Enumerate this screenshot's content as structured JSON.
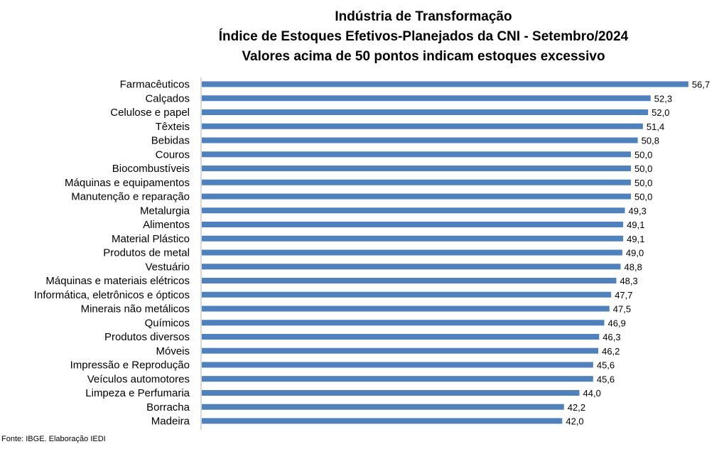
{
  "title_lines": [
    "Indústria de Transformação",
    "Índice de Estoques Efetivos-Planejados da CNI - Setembro/2024",
    "Valores acima de 50 pontos indicam estoques excessivo"
  ],
  "source": "Fonte: IBGE. Elaboração IEDI",
  "chart_data": {
    "type": "bar",
    "orientation": "horizontal",
    "categories": [
      "Farmacêuticos",
      "Calçados",
      "Celulose e papel",
      "Têxteis",
      "Bebidas",
      "Couros",
      "Biocombustíveis",
      "Máquinas e equipamentos",
      "Manutenção e reparação",
      "Metalurgia",
      "Alimentos",
      "Material Plástico",
      "Produtos de metal",
      "Vestuário",
      "Máquinas e materiais elétricos",
      "Informática, eletrônicos e ópticos",
      "Minerais não metálicos",
      "Químicos",
      "Produtos diversos",
      "Móveis",
      "Impressão e Reprodução ",
      "Veículos automotores",
      "Limpeza e Perfumaria",
      "Borracha",
      "Madeira"
    ],
    "values": [
      56.7,
      52.3,
      52.0,
      51.4,
      50.8,
      50.0,
      50.0,
      50.0,
      50.0,
      49.3,
      49.1,
      49.1,
      49.0,
      48.8,
      48.3,
      47.7,
      47.5,
      46.9,
      46.3,
      46.2,
      45.6,
      45.6,
      44.0,
      42.2,
      42.0
    ],
    "value_labels": [
      "56,7",
      "52,3",
      "52,0",
      "51,4",
      "50,8",
      "50,0",
      "50,0",
      "50,0",
      "50,0",
      "49,3",
      "49,1",
      "49,1",
      "49,0",
      "48,8",
      "48,3",
      "47,7",
      "47,5",
      "46,9",
      "46,3",
      "46,2",
      "45,6",
      "45,6",
      "44,0",
      "42,2",
      "42,0"
    ],
    "xlim": [
      0,
      60
    ],
    "grid": false,
    "legend": "none",
    "bar_color": "#4f81bd"
  }
}
